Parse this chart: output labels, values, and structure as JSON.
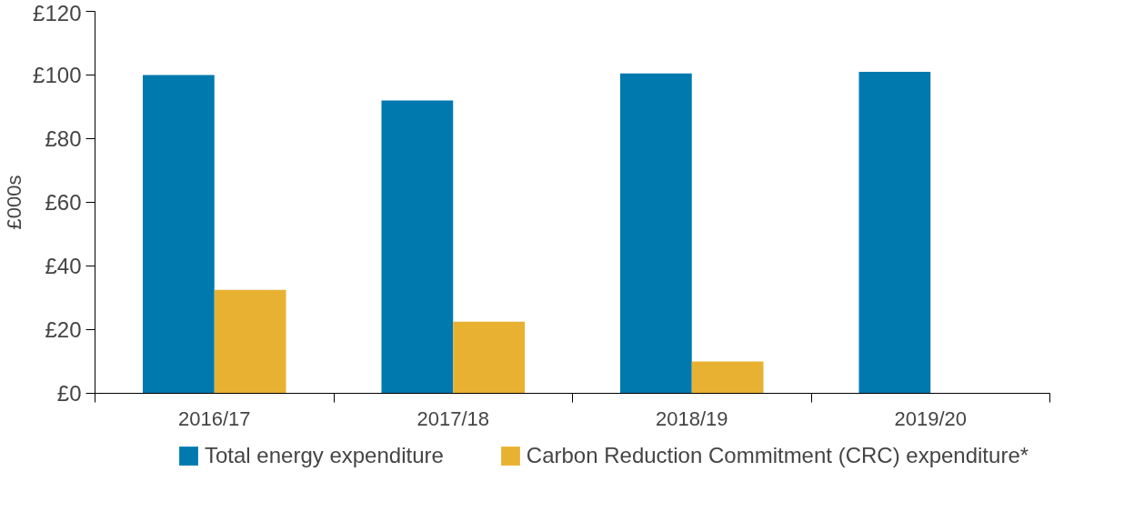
{
  "chart_data": {
    "type": "bar",
    "ylabel": "£000s",
    "categories": [
      "2016/17",
      "2017/18",
      "2018/19",
      "2019/20"
    ],
    "series": [
      {
        "name": "Total energy expenditure",
        "color": "#0079ae",
        "values": [
          100,
          92,
          100.5,
          101
        ]
      },
      {
        "name": "Carbon Reduction Commitment (CRC) expenditure*",
        "color": "#e8b132",
        "values": [
          32.5,
          22.5,
          10,
          null
        ]
      }
    ],
    "ylim": [
      0,
      120
    ],
    "yticks": [
      {
        "value": 0,
        "label": "£0"
      },
      {
        "value": 20,
        "label": "£20"
      },
      {
        "value": 40,
        "label": "£40"
      },
      {
        "value": 60,
        "label": "£60"
      },
      {
        "value": 80,
        "label": "£80"
      },
      {
        "value": 100,
        "label": "£100"
      },
      {
        "value": 120,
        "label": "£120"
      }
    ],
    "grid": false,
    "legend": "bottom"
  }
}
